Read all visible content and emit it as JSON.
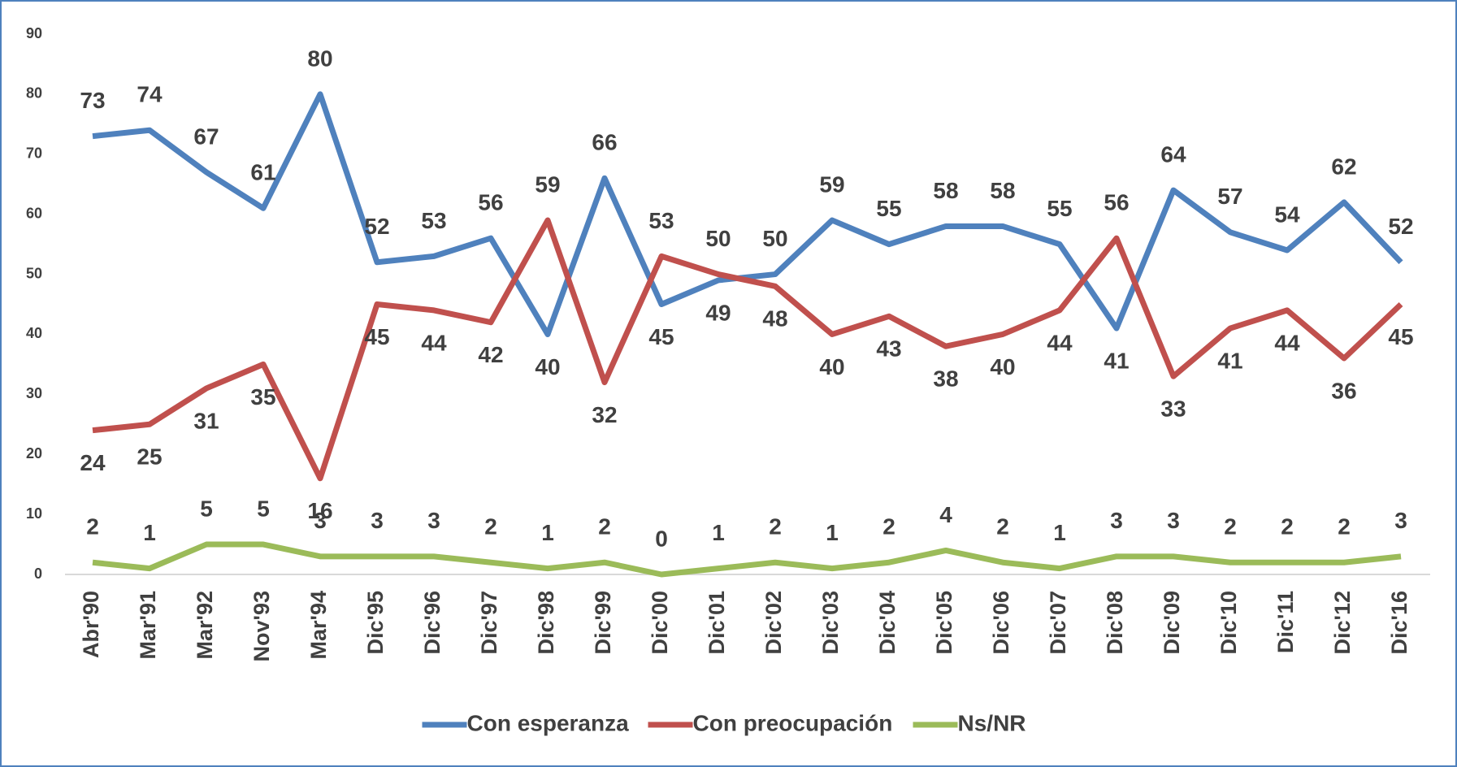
{
  "chart_data": {
    "type": "line",
    "categories": [
      "Abr'90",
      "Mar'91",
      "Mar'92",
      "Nov'93",
      "Mar'94",
      "Dic'95",
      "Dic'96",
      "Dic'97",
      "Dic'98",
      "Dic'99",
      "Dic'00",
      "Dic'01",
      "Dic'02",
      "Dic'03",
      "Dic'04",
      "Dic'05",
      "Dic'06",
      "Dic'07",
      "Dic'08",
      "Dic'09",
      "Dic'10",
      "Dic'11",
      "Dic'12",
      "Dic'16"
    ],
    "series": [
      {
        "name": "Con esperanza",
        "color": "#4f81bd",
        "values": [
          73,
          74,
          67,
          61,
          80,
          52,
          53,
          56,
          40,
          66,
          45,
          49,
          50,
          59,
          55,
          58,
          58,
          55,
          41,
          64,
          57,
          54,
          62,
          52
        ]
      },
      {
        "name": "Con preocupación",
        "color": "#c0504d",
        "values": [
          24,
          25,
          31,
          35,
          16,
          45,
          44,
          42,
          59,
          32,
          53,
          50,
          48,
          40,
          43,
          38,
          40,
          44,
          56,
          33,
          41,
          44,
          36,
          45
        ]
      },
      {
        "name": "Ns/NR",
        "color": "#9bbb59",
        "values": [
          2,
          1,
          5,
          5,
          3,
          3,
          3,
          2,
          1,
          2,
          0,
          1,
          2,
          1,
          2,
          4,
          2,
          1,
          3,
          3,
          2,
          2,
          2,
          3
        ]
      }
    ],
    "ylim": [
      0,
      90
    ],
    "yticks": [
      0,
      10,
      20,
      30,
      40,
      50,
      60,
      70,
      80,
      90
    ],
    "grid": false,
    "legend": "bottom"
  }
}
